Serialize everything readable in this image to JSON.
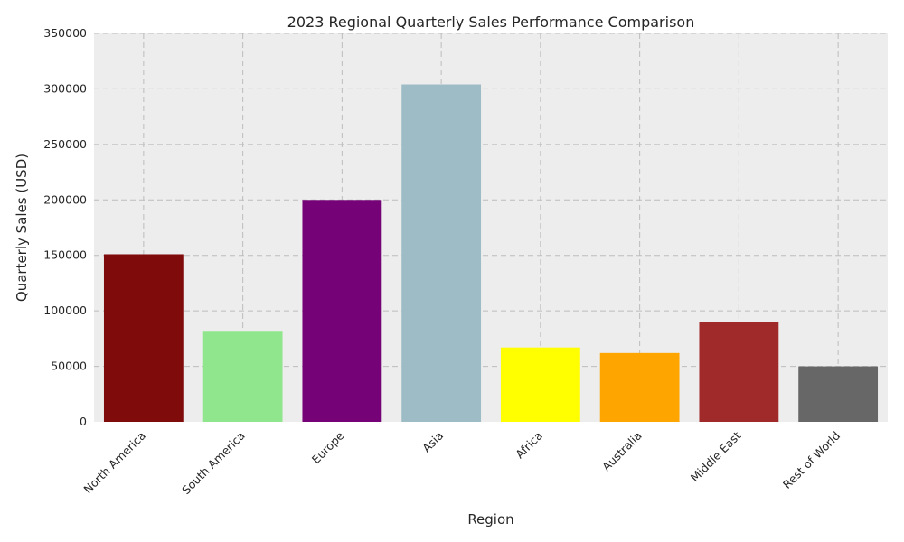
{
  "chart_data": {
    "type": "bar",
    "title": "2023 Regional Quarterly Sales Performance Comparison",
    "xlabel": "Region",
    "ylabel": "Quarterly Sales (USD)",
    "categories": [
      "North America",
      "South America",
      "Europe",
      "Asia",
      "Africa",
      "Australia",
      "Middle East",
      "Rest of World"
    ],
    "values": [
      151000,
      82000,
      200000,
      304000,
      67000,
      62000,
      90000,
      50000
    ],
    "colors": [
      "#7f0b0b",
      "#90e68c",
      "#750277",
      "#9ebcc6",
      "#ffff00",
      "#ffa500",
      "#a02a2a",
      "#676767"
    ],
    "ylim": [
      0,
      350000
    ],
    "yticks": [
      "0",
      "50000",
      "100000",
      "150000",
      "200000",
      "250000",
      "300000",
      "350000"
    ],
    "grid": true,
    "plot_background": "#ededed"
  }
}
